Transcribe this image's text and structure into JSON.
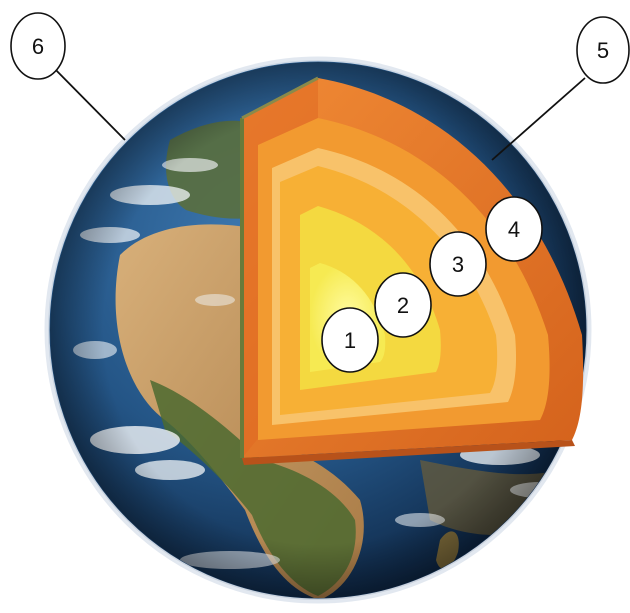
{
  "diagram": {
    "labels": [
      {
        "id": "inner-core",
        "text": "1"
      },
      {
        "id": "outer-core",
        "text": "2"
      },
      {
        "id": "lower-mantle",
        "text": "3"
      },
      {
        "id": "upper-mantle",
        "text": "4"
      },
      {
        "id": "crust",
        "text": "5"
      },
      {
        "id": "surface",
        "text": "6"
      }
    ],
    "colors": {
      "ocean": "#2a5f91",
      "ocean_dark": "#0f2b4d",
      "land_desert": "#c9a06a",
      "land_green": "#4f6a34",
      "clouds": "#f2f5f8",
      "crust": "#e4772c",
      "upper_mantle": "#f08f2a",
      "lower_mantle": "#f7b035",
      "outer_core": "#f4d940",
      "inner_core": "#fbf26a"
    }
  }
}
